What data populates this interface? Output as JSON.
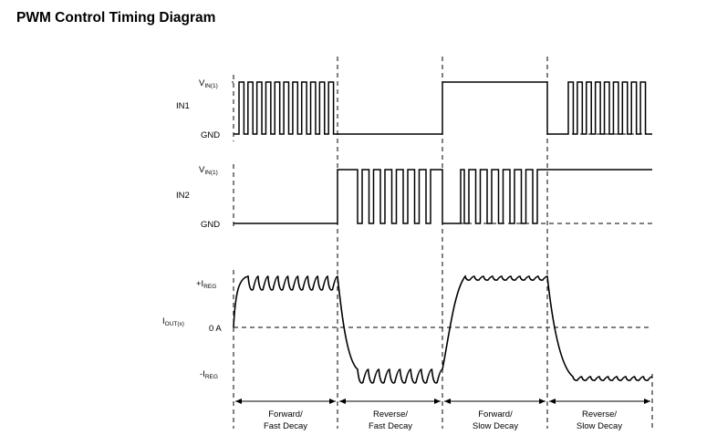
{
  "title": "PWM Control Timing Diagram",
  "signals": {
    "in1": {
      "name": "IN1",
      "high": {
        "main": "V",
        "sub": "IN(1)"
      },
      "low": "GND"
    },
    "in2": {
      "name": "IN2",
      "high": {
        "main": "V",
        "sub": "IN(1)"
      },
      "low": "GND"
    },
    "iout": {
      "name": {
        "main": "I",
        "sub": "OUT(x)"
      },
      "pos": {
        "main": "+I",
        "sub": "REG"
      },
      "zero": "0 A",
      "neg": {
        "main": "-I",
        "sub": "REG"
      }
    }
  },
  "phases": [
    {
      "line1": "Forward/",
      "line2": "Fast Decay"
    },
    {
      "line1": "Reverse/",
      "line2": "Fast Decay"
    },
    {
      "line1": "Forward/",
      "line2": "Slow Decay"
    },
    {
      "line1": "Reverse/",
      "line2": "Slow Decay"
    }
  ]
}
